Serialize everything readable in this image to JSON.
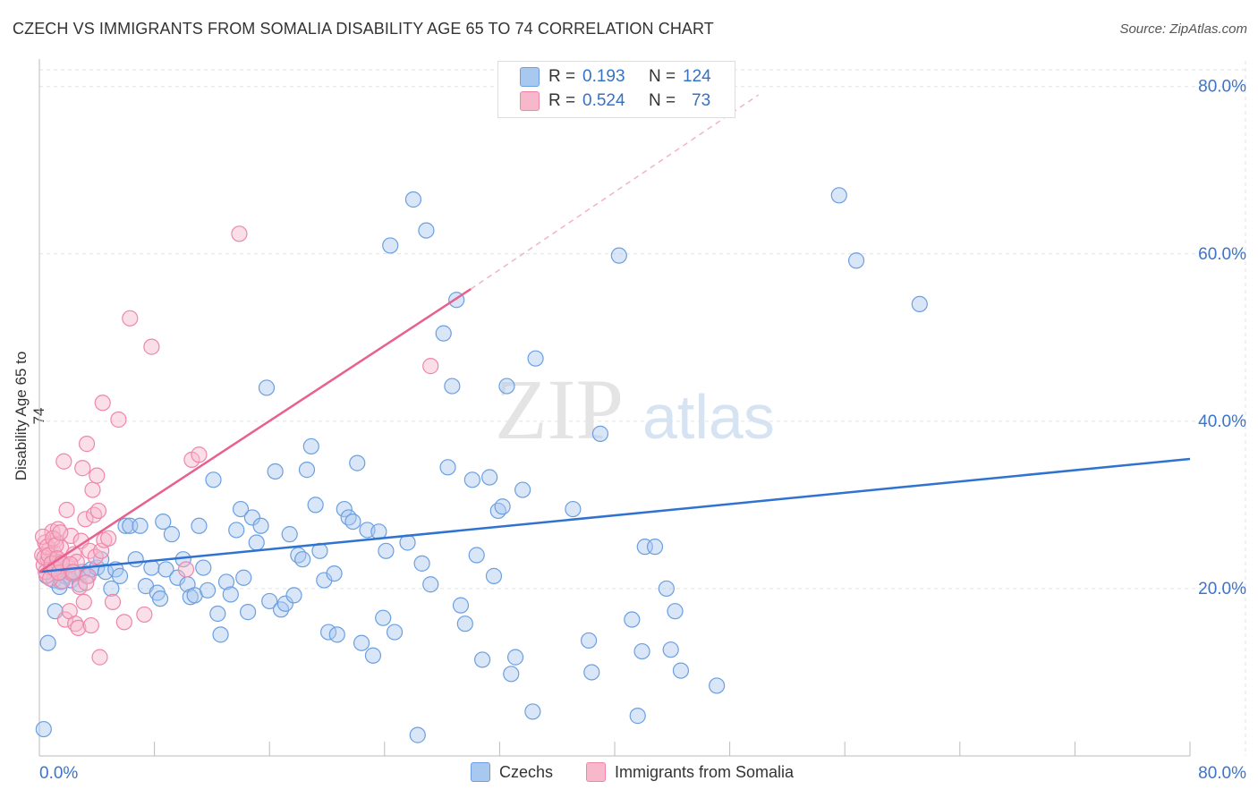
{
  "header": {
    "title": "CZECH VS IMMIGRANTS FROM SOMALIA DISABILITY AGE 65 TO 74 CORRELATION CHART",
    "source": "Source: ZipAtlas.com"
  },
  "stats_box": {
    "rows": [
      {
        "r_label": "R =",
        "r_value": "0.193",
        "n_label": "N =",
        "n_value": "124"
      },
      {
        "r_label": "R =",
        "r_value": "0.524",
        "n_label": "N =",
        "n_value": "73"
      }
    ]
  },
  "legend": {
    "items": [
      "Czechs",
      "Immigrants from Somalia"
    ]
  },
  "colors": {
    "czechs_fill": "#a9c8f0",
    "czechs_stroke": "#6b9fe0",
    "czechs_line": "#2f72d0",
    "somalia_fill": "#f7b8cb",
    "somalia_stroke": "#ef86a8",
    "somalia_line": "#e8608d",
    "axis_text": "#3a74cc",
    "grid": "#e2e2e2"
  },
  "watermark": {
    "zip": "ZIP",
    "atlas": "atlas"
  },
  "chart_data": {
    "type": "scatter",
    "title": "CZECH VS IMMIGRANTS FROM SOMALIA DISABILITY AGE 65 TO 74 CORRELATION CHART",
    "xlabel": "",
    "ylabel": "Disability Age 65 to 74",
    "xlim": [
      0,
      80
    ],
    "ylim": [
      0,
      82
    ],
    "x_tick_labels": [
      "0.0%",
      "80.0%"
    ],
    "y_ticks": [
      20,
      40,
      60,
      80
    ],
    "y_tick_labels": [
      "20.0%",
      "40.0%",
      "60.0%",
      "80.0%"
    ],
    "series": [
      {
        "name": "Czechs",
        "R": 0.193,
        "N": 124,
        "trend": {
          "x": [
            0,
            80
          ],
          "y": [
            22.0,
            35.5
          ],
          "dashed_to": null
        },
        "points": [
          [
            0.5,
            21.5
          ],
          [
            0.8,
            22.5
          ],
          [
            1,
            21
          ],
          [
            1.2,
            23
          ],
          [
            1.5,
            20.8
          ],
          [
            1.8,
            21.5
          ],
          [
            2,
            22
          ],
          [
            2.2,
            21
          ],
          [
            2.5,
            21.8
          ],
          [
            2.8,
            20.5
          ],
          [
            3,
            22
          ],
          [
            3.3,
            21.5
          ],
          [
            3.6,
            22.3
          ],
          [
            4,
            22.5
          ],
          [
            4.3,
            23.5
          ],
          [
            4.6,
            22
          ],
          [
            5,
            20
          ],
          [
            5.3,
            22.3
          ],
          [
            5.6,
            21.5
          ],
          [
            6,
            27.5
          ],
          [
            6.3,
            27.5
          ],
          [
            6.7,
            23.5
          ],
          [
            7,
            27.5
          ],
          [
            7.4,
            20.3
          ],
          [
            7.8,
            22.5
          ],
          [
            8.2,
            19.5
          ],
          [
            8.4,
            18.8
          ],
          [
            8.6,
            28
          ],
          [
            8.8,
            22.3
          ],
          [
            9.2,
            26.5
          ],
          [
            9.6,
            21.3
          ],
          [
            10,
            23.5
          ],
          [
            10.3,
            20.5
          ],
          [
            10.5,
            19
          ],
          [
            10.8,
            19.2
          ],
          [
            11.1,
            27.5
          ],
          [
            11.4,
            22.5
          ],
          [
            11.7,
            19.8
          ],
          [
            12.1,
            33
          ],
          [
            12.4,
            17
          ],
          [
            12.6,
            14.5
          ],
          [
            13,
            20.8
          ],
          [
            13.3,
            19.3
          ],
          [
            13.7,
            27
          ],
          [
            14,
            29.5
          ],
          [
            14.2,
            21.3
          ],
          [
            14.5,
            17.2
          ],
          [
            14.8,
            28.5
          ],
          [
            15.1,
            25.5
          ],
          [
            15.4,
            27.5
          ],
          [
            15.8,
            44
          ],
          [
            16,
            18.5
          ],
          [
            16.4,
            34
          ],
          [
            16.8,
            17.5
          ],
          [
            17.1,
            18.2
          ],
          [
            17.4,
            26.5
          ],
          [
            17.7,
            19.2
          ],
          [
            18,
            24
          ],
          [
            18.3,
            23.5
          ],
          [
            18.6,
            34.2
          ],
          [
            18.9,
            37
          ],
          [
            19.2,
            30
          ],
          [
            19.5,
            24.5
          ],
          [
            19.8,
            21
          ],
          [
            20.1,
            14.8
          ],
          [
            20.5,
            21.8
          ],
          [
            20.7,
            14.5
          ],
          [
            21.2,
            29.5
          ],
          [
            21.5,
            28.5
          ],
          [
            21.8,
            28
          ],
          [
            22.1,
            35
          ],
          [
            22.4,
            13.5
          ],
          [
            22.8,
            27
          ],
          [
            23.2,
            12
          ],
          [
            23.6,
            26.8
          ],
          [
            23.9,
            16.5
          ],
          [
            24.1,
            24.5
          ],
          [
            24.4,
            61
          ],
          [
            24.7,
            14.8
          ],
          [
            25.6,
            25.5
          ],
          [
            26,
            66.5
          ],
          [
            26.3,
            2.5
          ],
          [
            26.6,
            23
          ],
          [
            26.9,
            62.8
          ],
          [
            27.2,
            20.5
          ],
          [
            28.1,
            50.5
          ],
          [
            28.4,
            34.5
          ],
          [
            28.7,
            44.2
          ],
          [
            29,
            54.5
          ],
          [
            29.3,
            18
          ],
          [
            29.6,
            15.8
          ],
          [
            30.1,
            33
          ],
          [
            30.4,
            24
          ],
          [
            30.8,
            11.5
          ],
          [
            31.3,
            33.3
          ],
          [
            31.6,
            21.5
          ],
          [
            31.9,
            29.3
          ],
          [
            32.2,
            29.8
          ],
          [
            32.5,
            44.2
          ],
          [
            32.8,
            9.8
          ],
          [
            33.1,
            11.8
          ],
          [
            33.6,
            31.8
          ],
          [
            34.3,
            5.3
          ],
          [
            34.5,
            47.5
          ],
          [
            37.1,
            29.5
          ],
          [
            38.2,
            13.8
          ],
          [
            38.4,
            10
          ],
          [
            39,
            38.5
          ],
          [
            40.3,
            59.8
          ],
          [
            41.2,
            16.3
          ],
          [
            41.6,
            4.8
          ],
          [
            41.9,
            12.5
          ],
          [
            42.1,
            25
          ],
          [
            42.8,
            25
          ],
          [
            47.1,
            8.4
          ],
          [
            55.6,
            67
          ],
          [
            56.8,
            59.2
          ],
          [
            61.2,
            54
          ],
          [
            0.3,
            3.2
          ],
          [
            0.6,
            13.5
          ],
          [
            1.1,
            17.3
          ],
          [
            1.4,
            20.2
          ],
          [
            43.6,
            20
          ],
          [
            44.2,
            17.3
          ],
          [
            44.6,
            10.2
          ],
          [
            43.9,
            12.7
          ]
        ]
      },
      {
        "name": "Immigrants from Somalia",
        "R": 0.524,
        "N": 73,
        "trend": {
          "x": [
            0,
            30
          ],
          "y": [
            22.0,
            55.8
          ],
          "dashed_to": [
            50,
            79
          ]
        },
        "points": [
          [
            0.2,
            24
          ],
          [
            0.3,
            22.8
          ],
          [
            0.4,
            25.5
          ],
          [
            0.5,
            21.6
          ],
          [
            0.6,
            23.5
          ],
          [
            0.7,
            24.7
          ],
          [
            0.8,
            22.5
          ],
          [
            0.9,
            26.8
          ],
          [
            1,
            24.3
          ],
          [
            1.1,
            25.8
          ],
          [
            1.2,
            22.1
          ],
          [
            1.3,
            27.1
          ],
          [
            1.4,
            23.2
          ],
          [
            1.5,
            24.9
          ],
          [
            1.6,
            20.9
          ],
          [
            1.7,
            35.2
          ],
          [
            1.8,
            16.3
          ],
          [
            1.9,
            29.4
          ],
          [
            2,
            22.7
          ],
          [
            2.1,
            17.3
          ],
          [
            2.2,
            26.3
          ],
          [
            2.3,
            21.8
          ],
          [
            2.4,
            24.1
          ],
          [
            2.5,
            15.8
          ],
          [
            2.6,
            23.2
          ],
          [
            2.7,
            15.3
          ],
          [
            2.8,
            20.2
          ],
          [
            2.9,
            25.7
          ],
          [
            3,
            34.4
          ],
          [
            3.1,
            18.4
          ],
          [
            3.2,
            28.3
          ],
          [
            3.3,
            37.3
          ],
          [
            3.4,
            21.5
          ],
          [
            3.5,
            24.5
          ],
          [
            3.6,
            15.6
          ],
          [
            3.7,
            31.8
          ],
          [
            3.8,
            28.8
          ],
          [
            3.9,
            23.8
          ],
          [
            4,
            33.5
          ],
          [
            4.1,
            29.3
          ],
          [
            4.2,
            11.8
          ],
          [
            4.3,
            24.5
          ],
          [
            4.4,
            42.2
          ],
          [
            4.5,
            25.8
          ],
          [
            4.8,
            26
          ],
          [
            5.1,
            18.4
          ],
          [
            5.5,
            40.2
          ],
          [
            5.9,
            16
          ],
          [
            6.3,
            52.3
          ],
          [
            7.3,
            16.9
          ],
          [
            7.8,
            48.9
          ],
          [
            10.6,
            35.4
          ],
          [
            11.1,
            36
          ],
          [
            13.9,
            62.4
          ],
          [
            27.2,
            46.6
          ],
          [
            0.25,
            26.2
          ],
          [
            0.35,
            23.7
          ],
          [
            0.45,
            22
          ],
          [
            0.55,
            25
          ],
          [
            0.65,
            24
          ],
          [
            0.75,
            21.2
          ],
          [
            0.85,
            23
          ],
          [
            0.95,
            26
          ],
          [
            1.05,
            22.4
          ],
          [
            1.15,
            25.2
          ],
          [
            1.25,
            23.6
          ],
          [
            1.35,
            21.9
          ],
          [
            1.45,
            26.7
          ],
          [
            1.55,
            23
          ],
          [
            2.15,
            22.9
          ],
          [
            2.35,
            22
          ],
          [
            3.25,
            20.7
          ],
          [
            10.2,
            22.3
          ]
        ]
      }
    ]
  }
}
